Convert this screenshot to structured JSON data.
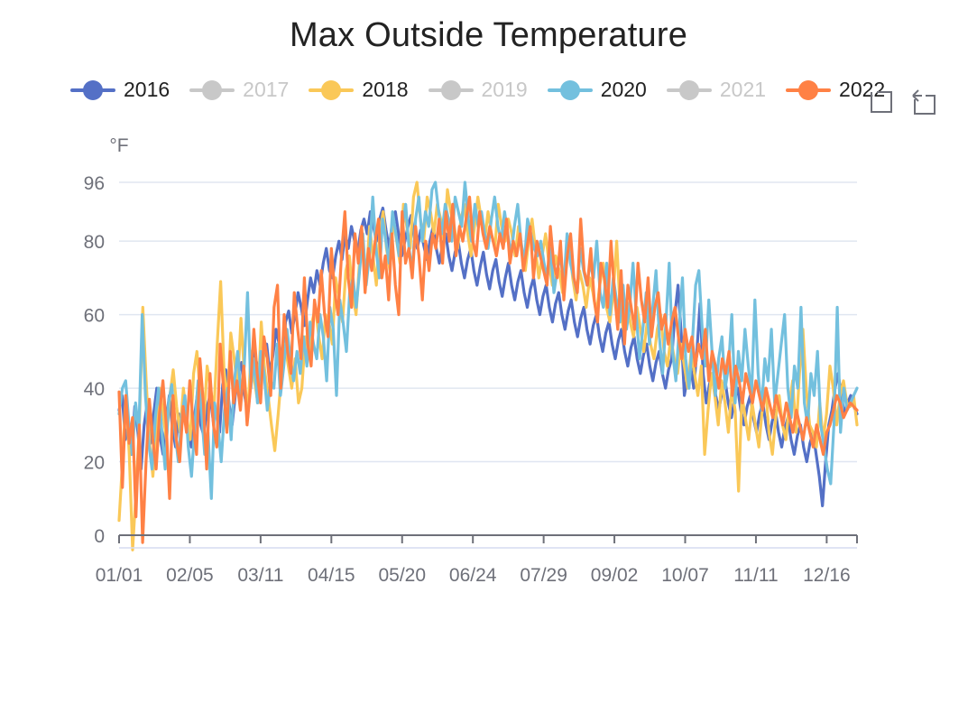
{
  "chart_data": {
    "type": "line",
    "title": "Max Outside Temperature",
    "ylabel": "°F",
    "xlabel": "",
    "ylim": [
      0,
      96
    ],
    "yticks": [
      0,
      20,
      40,
      60,
      80,
      96
    ],
    "x_tick_labels": [
      "01/01",
      "02/05",
      "03/11",
      "04/15",
      "05/20",
      "06/24",
      "07/29",
      "09/02",
      "10/07",
      "11/11",
      "12/16"
    ],
    "days_in_year": 366,
    "grid": true,
    "legend_position": "top",
    "legend": [
      {
        "name": "2016",
        "color": "#5470c6",
        "selected": true
      },
      {
        "name": "2017",
        "color": "#c8c8c8",
        "selected": false
      },
      {
        "name": "2018",
        "color": "#fac858",
        "selected": true
      },
      {
        "name": "2019",
        "color": "#c8c8c8",
        "selected": false
      },
      {
        "name": "2020",
        "color": "#73c0de",
        "selected": true
      },
      {
        "name": "2021",
        "color": "#c8c8c8",
        "selected": false
      },
      {
        "name": "2022",
        "color": "#ff8145",
        "selected": true
      }
    ],
    "series": [
      {
        "name": "2016",
        "color": "#5470c6",
        "start_day": 0,
        "end_day": 365,
        "values": [
          34,
          38,
          26,
          30,
          22,
          35,
          28,
          18,
          30,
          36,
          25,
          33,
          40,
          27,
          22,
          31,
          38,
          29,
          24,
          33,
          30,
          36,
          28,
          24,
          32,
          39,
          30,
          27,
          35,
          38,
          31,
          34,
          28,
          41,
          45,
          36,
          30,
          38,
          44,
          47,
          38,
          33,
          42,
          50,
          46,
          40,
          48,
          52,
          44,
          49,
          56,
          52,
          47,
          58,
          61,
          55,
          60,
          66,
          62,
          57,
          64,
          70,
          66,
          72,
          68,
          74,
          78,
          72,
          70,
          76,
          80,
          75,
          82,
          78,
          84,
          80,
          77,
          83,
          86,
          82,
          88,
          84,
          80,
          86,
          89,
          83,
          78,
          85,
          88,
          82,
          76,
          80,
          84,
          87,
          81,
          78,
          83,
          79,
          75,
          80,
          84,
          78,
          74,
          79,
          82,
          76,
          72,
          77,
          80,
          74,
          70,
          75,
          78,
          72,
          68,
          73,
          77,
          71,
          67,
          72,
          75,
          69,
          65,
          70,
          74,
          68,
          64,
          69,
          72,
          66,
          62,
          67,
          70,
          64,
          60,
          65,
          68,
          62,
          58,
          63,
          66,
          60,
          56,
          61,
          64,
          58,
          54,
          59,
          62,
          56,
          52,
          57,
          60,
          54,
          50,
          55,
          58,
          52,
          48,
          53,
          56,
          50,
          46,
          51,
          54,
          48,
          44,
          49,
          52,
          46,
          42,
          47,
          50,
          44,
          40,
          45,
          48,
          60,
          68,
          55,
          38,
          43,
          46,
          40,
          50,
          63,
          44,
          36,
          41,
          44,
          38,
          34,
          39,
          42,
          36,
          32,
          37,
          40,
          34,
          30,
          35,
          38,
          32,
          28,
          33,
          36,
          30,
          26,
          31,
          34,
          28,
          24,
          29,
          32,
          26,
          22,
          27,
          30,
          24,
          20,
          25,
          28,
          22,
          16,
          8,
          20,
          30,
          34,
          40,
          44,
          38,
          33,
          36,
          38,
          35,
          33
        ]
      },
      {
        "name": "2018",
        "color": "#fac858",
        "start_day": 0,
        "end_day": 365,
        "values": [
          4,
          20,
          38,
          22,
          -4,
          12,
          30,
          62,
          42,
          25,
          16,
          30,
          40,
          33,
          26,
          38,
          45,
          35,
          28,
          40,
          32,
          26,
          44,
          50,
          38,
          30,
          46,
          40,
          34,
          52,
          69,
          45,
          36,
          55,
          48,
          40,
          59,
          44,
          32,
          50,
          42,
          36,
          58,
          45,
          38,
          30,
          23,
          33,
          44,
          52,
          46,
          40,
          48,
          36,
          40,
          54,
          48,
          58,
          62,
          54,
          48,
          60,
          58,
          52,
          70,
          64,
          58,
          72,
          76,
          66,
          60,
          74,
          80,
          70,
          84,
          76,
          68,
          82,
          88,
          78,
          72,
          86,
          80,
          74,
          90,
          84,
          78,
          92,
          96,
          86,
          80,
          92,
          88,
          82,
          90,
          86,
          80,
          94,
          88,
          84,
          78,
          86,
          90,
          82,
          76,
          84,
          92,
          86,
          80,
          88,
          82,
          78,
          90,
          84,
          80,
          86,
          82,
          76,
          84,
          78,
          72,
          80,
          86,
          78,
          70,
          76,
          82,
          74,
          68,
          76,
          72,
          66,
          74,
          80,
          70,
          64,
          72,
          68,
          62,
          70,
          66,
          60,
          68,
          74,
          62,
          58,
          66,
          80,
          62,
          56,
          64,
          58,
          54,
          62,
          56,
          50,
          58,
          52,
          48,
          56,
          60,
          50,
          46,
          54,
          48,
          44,
          52,
          46,
          40,
          50,
          44,
          38,
          46,
          22,
          34,
          44,
          38,
          30,
          42,
          36,
          28,
          40,
          34,
          12,
          38,
          32,
          26,
          36,
          30,
          24,
          34,
          40,
          28,
          22,
          32,
          38,
          30,
          26,
          36,
          42,
          28,
          44,
          56,
          40,
          30,
          28,
          24,
          36,
          26,
          33,
          46,
          40,
          30,
          38,
          42,
          36,
          35,
          38,
          30
        ]
      },
      {
        "name": "2020",
        "color": "#73c0de",
        "start_day": 0,
        "end_day": 365,
        "values": [
          33,
          40,
          42,
          30,
          22,
          36,
          28,
          60,
          38,
          25,
          18,
          32,
          40,
          28,
          18,
          36,
          41,
          28,
          20,
          32,
          38,
          24,
          16,
          30,
          42,
          34,
          22,
          28,
          10,
          36,
          30,
          20,
          34,
          40,
          26,
          42,
          50,
          38,
          46,
          66,
          40,
          48,
          36,
          50,
          44,
          34,
          42,
          40,
          52,
          38,
          46,
          56,
          48,
          42,
          50,
          44,
          54,
          46,
          58,
          52,
          48,
          60,
          54,
          42,
          62,
          56,
          38,
          64,
          58,
          50,
          66,
          70,
          62,
          72,
          82,
          68,
          76,
          92,
          78,
          70,
          86,
          80,
          74,
          88,
          82,
          76,
          84,
          90,
          78,
          72,
          86,
          92,
          80,
          88,
          84,
          94,
          96,
          88,
          82,
          90,
          86,
          80,
          92,
          88,
          84,
          96,
          86,
          80,
          90,
          84,
          88,
          82,
          78,
          86,
          92,
          84,
          80,
          88,
          82,
          76,
          84,
          90,
          80,
          74,
          86,
          82,
          78,
          76,
          80,
          74,
          70,
          78,
          66,
          72,
          76,
          68,
          82,
          74,
          70,
          66,
          78,
          72,
          68,
          74,
          70,
          80,
          66,
          62,
          74,
          60,
          70,
          64,
          58,
          68,
          56,
          62,
          74,
          60,
          48,
          56,
          66,
          52,
          62,
          72,
          54,
          44,
          58,
          74,
          50,
          42,
          56,
          70,
          48,
          40,
          52,
          68,
          72,
          56,
          46,
          64,
          50,
          38,
          48,
          54,
          40,
          46,
          60,
          36,
          50,
          42,
          56,
          46,
          38,
          64,
          44,
          34,
          48,
          42,
          56,
          36,
          44,
          52,
          60,
          40,
          32,
          46,
          40,
          62,
          36,
          30,
          44,
          38,
          50,
          30,
          24,
          18,
          14,
          30,
          62,
          28,
          40,
          34,
          36,
          38,
          40
        ]
      },
      {
        "name": "2022",
        "color": "#ff8145",
        "start_day": 0,
        "end_day": 365,
        "values": [
          39,
          13,
          38,
          25,
          32,
          5,
          30,
          -2,
          20,
          37,
          26,
          18,
          33,
          42,
          30,
          10,
          38,
          26,
          20,
          35,
          28,
          42,
          30,
          22,
          48,
          36,
          18,
          44,
          30,
          24,
          52,
          40,
          28,
          50,
          36,
          42,
          34,
          46,
          30,
          40,
          56,
          44,
          36,
          54,
          48,
          38,
          62,
          68,
          40,
          60,
          50,
          44,
          66,
          56,
          48,
          70,
          52,
          46,
          64,
          58,
          72,
          60,
          54,
          78,
          66,
          60,
          76,
          88,
          70,
          62,
          82,
          74,
          84,
          66,
          78,
          72,
          80,
          86,
          70,
          76,
          64,
          82,
          68,
          60,
          88,
          74,
          78,
          70,
          84,
          76,
          64,
          80,
          72,
          82,
          78,
          86,
          74,
          88,
          80,
          90,
          76,
          84,
          80,
          86,
          92,
          80,
          76,
          88,
          82,
          78,
          84,
          80,
          76,
          82,
          78,
          86,
          74,
          80,
          76,
          82,
          72,
          78,
          84,
          70,
          80,
          76,
          72,
          68,
          84,
          74,
          70,
          80,
          64,
          76,
          82,
          70,
          66,
          86,
          72,
          68,
          78,
          64,
          58,
          74,
          70,
          62,
          80,
          66,
          56,
          72,
          52,
          68,
          62,
          56,
          74,
          64,
          58,
          70,
          54,
          62,
          66,
          56,
          60,
          52,
          58,
          62,
          54,
          48,
          56,
          50,
          54,
          46,
          52,
          48,
          56,
          42,
          50,
          46,
          40,
          48,
          44,
          50,
          38,
          46,
          42,
          36,
          44,
          40,
          36,
          42,
          38,
          34,
          40,
          36,
          32,
          38,
          34,
          30,
          36,
          32,
          28,
          34,
          30,
          26,
          32,
          28,
          24,
          30,
          26,
          22,
          28,
          30,
          34,
          38,
          36,
          32,
          34,
          36,
          35,
          34
        ]
      }
    ]
  },
  "toolbox": {
    "zoom_icon": "data-zoom-icon",
    "reset_icon": "zoom-reset-icon"
  }
}
